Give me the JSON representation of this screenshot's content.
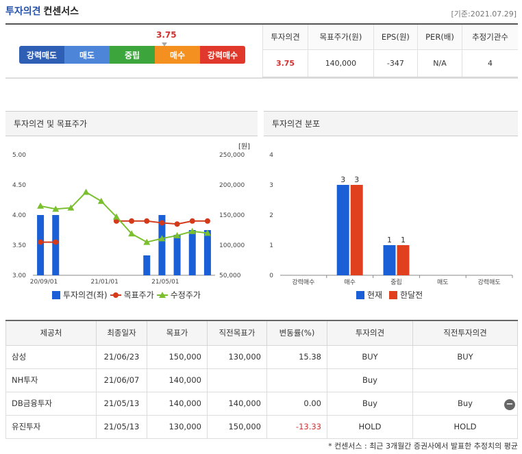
{
  "header": {
    "title_part1": "투자의견",
    "title_part2": "컨센서스",
    "date": "[기준:2021.07.29]"
  },
  "consensus": {
    "marker_value": "3.75",
    "segments": [
      {
        "label": "강력매도",
        "color": "#2f5fb4"
      },
      {
        "label": "매도",
        "color": "#4d86d8"
      },
      {
        "label": "중립",
        "color": "#3ca63c"
      },
      {
        "label": "매수",
        "color": "#f39020"
      },
      {
        "label": "강력매수",
        "color": "#e0382a"
      }
    ],
    "marker_position": 3.75
  },
  "stats": {
    "headers": [
      "투자의견",
      "목표주가(원)",
      "EPS(원)",
      "PER(배)",
      "추정기관수"
    ],
    "values": [
      "3.75",
      "140,000",
      "-347",
      "N/A",
      "4"
    ]
  },
  "panel_left": {
    "title": "투자의견 및 목표주가",
    "unit": "[원]",
    "legend": [
      "투자의견(좌)",
      "목표주가",
      "수정주가"
    ]
  },
  "panel_right": {
    "title": "투자의견 분포",
    "legend": [
      "현재",
      "한달전"
    ]
  },
  "chart_data": [
    {
      "type": "bar+line",
      "x_tick_labels": [
        "20/09/01",
        "21/01/01",
        "21/05/01"
      ],
      "y_left_ticks": [
        "5.00",
        "4.50",
        "4.00",
        "3.50",
        "3.00"
      ],
      "y_right_ticks": [
        "250,000",
        "200,000",
        "150,000",
        "100,000",
        "50,000"
      ],
      "ylim_left": [
        3.0,
        5.0
      ],
      "ylim_right": [
        50000,
        250000
      ],
      "series": [
        {
          "name": "투자의견(좌)",
          "kind": "bar",
          "axis": "left",
          "color": "#1a5fd6",
          "x": [
            0,
            1,
            7,
            8,
            9,
            10,
            11
          ],
          "values": [
            4.0,
            4.0,
            3.33,
            4.0,
            3.67,
            3.75,
            3.75
          ]
        },
        {
          "name": "목표주가",
          "kind": "line",
          "axis": "right",
          "color": "#d43a1a",
          "x": [
            0,
            1,
            5,
            6,
            7,
            8,
            9,
            10,
            11
          ],
          "values": [
            105000,
            105000,
            140000,
            140000,
            140000,
            137000,
            135000,
            140000,
            140000
          ]
        },
        {
          "name": "수정주가",
          "kind": "line",
          "axis": "right",
          "color": "#7ac02e",
          "x": [
            0,
            1,
            2,
            3,
            4,
            5,
            6,
            7,
            8,
            9,
            10,
            11
          ],
          "values": [
            165000,
            160000,
            162000,
            188000,
            173000,
            147000,
            119000,
            105000,
            111000,
            116000,
            123000,
            120000
          ]
        }
      ],
      "x_count": 12
    },
    {
      "type": "bar",
      "categories": [
        "강력매수",
        "매수",
        "중립",
        "매도",
        "강력매도"
      ],
      "ylim": [
        0,
        4
      ],
      "y_ticks": [
        "4",
        "3",
        "2",
        "1",
        "0"
      ],
      "series": [
        {
          "name": "현재",
          "color": "#1a5fd6",
          "values": [
            0,
            3,
            1,
            0,
            0
          ]
        },
        {
          "name": "한달전",
          "color": "#e0401e",
          "values": [
            0,
            3,
            1,
            0,
            0
          ]
        }
      ]
    }
  ],
  "table": {
    "headers": [
      "제공처",
      "최종일자",
      "목표가",
      "직전목표가",
      "변동률(%)",
      "투자의견",
      "직전투자의견"
    ],
    "rows": [
      [
        "삼성",
        "21/06/23",
        "150,000",
        "130,000",
        "15.38",
        "BUY",
        "BUY"
      ],
      [
        "NH투자",
        "21/06/07",
        "140,000",
        "",
        "",
        "Buy",
        ""
      ],
      [
        "DB금융투자",
        "21/05/13",
        "140,000",
        "140,000",
        "0.00",
        "Buy",
        "Buy"
      ],
      [
        "유진투자",
        "21/05/13",
        "130,000",
        "150,000",
        "-13.33",
        "HOLD",
        "HOLD"
      ]
    ]
  },
  "footnote": "* 컨센서스 : 최근 3개월간 증권사에서 발표한 추정치의 평균"
}
